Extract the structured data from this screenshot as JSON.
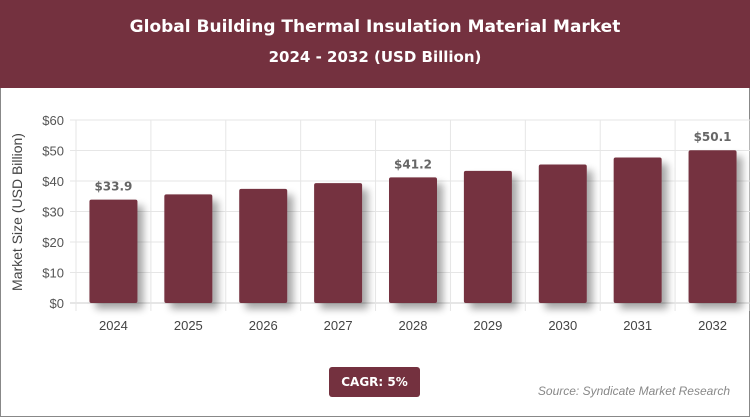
{
  "title": "Global Building Thermal Insulation Material Market",
  "subtitle": "2024 - 2032 (USD Billion)",
  "cagr_label": "CAGR: 5%",
  "source": "Source: Syndicate Market Research",
  "colors": {
    "bar": "#74313f",
    "header": "#74313f"
  },
  "chart_data": {
    "type": "bar",
    "categories": [
      "2024",
      "2025",
      "2026",
      "2027",
      "2028",
      "2029",
      "2030",
      "2031",
      "2032"
    ],
    "values": [
      33.9,
      35.6,
      37.4,
      39.3,
      41.2,
      43.3,
      45.4,
      47.7,
      50.1
    ],
    "data_labels": {
      "0": "$33.9",
      "4": "$41.2",
      "8": "$50.1"
    },
    "ylabel": "Market Size (USD Billion)",
    "xlabel": "",
    "ylim": [
      0,
      60
    ],
    "yticks": [
      "$0",
      "$10",
      "$20",
      "$30",
      "$40",
      "$50",
      "$60"
    ],
    "grid": true
  }
}
